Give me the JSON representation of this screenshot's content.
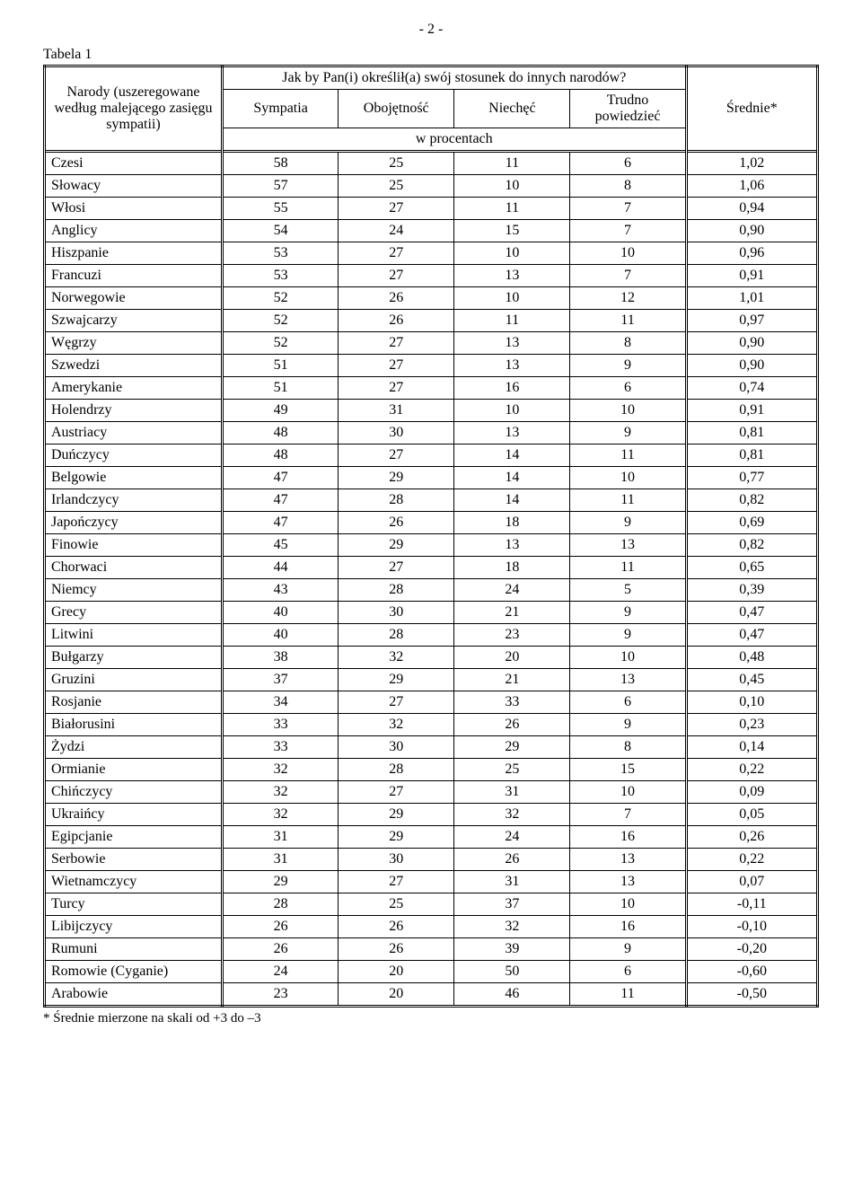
{
  "page_number": "- 2 -",
  "table_label": "Tabela 1",
  "header": {
    "nations": "Narody\n(uszeregowane według malejącego zasięgu sympatii)",
    "question": "Jak by Pan(i) określił(a) swój stosunek do innych narodów?",
    "sympatia": "Sympatia",
    "obojetnosc": "Obojętność",
    "niechec": "Niechęć",
    "trudno": "Trudno powiedzieć",
    "wprocentach": "w procentach",
    "srednie": "Średnie*"
  },
  "columns": [
    "Sympatia",
    "Obojętność",
    "Niechęć",
    "Trudno powiedzieć"
  ],
  "col_widths": {
    "nation": "23%",
    "q": "15%",
    "avg": "17%"
  },
  "rows": [
    {
      "n": "Czesi",
      "v": [
        58,
        25,
        11,
        6
      ],
      "a": "1,02"
    },
    {
      "n": "Słowacy",
      "v": [
        57,
        25,
        10,
        8
      ],
      "a": "1,06"
    },
    {
      "n": "Włosi",
      "v": [
        55,
        27,
        11,
        7
      ],
      "a": "0,94"
    },
    {
      "n": "Anglicy",
      "v": [
        54,
        24,
        15,
        7
      ],
      "a": "0,90"
    },
    {
      "n": "Hiszpanie",
      "v": [
        53,
        27,
        10,
        10
      ],
      "a": "0,96"
    },
    {
      "n": "Francuzi",
      "v": [
        53,
        27,
        13,
        7
      ],
      "a": "0,91"
    },
    {
      "n": "Norwegowie",
      "v": [
        52,
        26,
        10,
        12
      ],
      "a": "1,01"
    },
    {
      "n": "Szwajcarzy",
      "v": [
        52,
        26,
        11,
        11
      ],
      "a": "0,97"
    },
    {
      "n": "Węgrzy",
      "v": [
        52,
        27,
        13,
        8
      ],
      "a": "0,90"
    },
    {
      "n": "Szwedzi",
      "v": [
        51,
        27,
        13,
        9
      ],
      "a": "0,90"
    },
    {
      "n": "Amerykanie",
      "v": [
        51,
        27,
        16,
        6
      ],
      "a": "0,74"
    },
    {
      "n": "Holendrzy",
      "v": [
        49,
        31,
        10,
        10
      ],
      "a": "0,91"
    },
    {
      "n": "Austriacy",
      "v": [
        48,
        30,
        13,
        9
      ],
      "a": "0,81"
    },
    {
      "n": "Duńczycy",
      "v": [
        48,
        27,
        14,
        11
      ],
      "a": "0,81"
    },
    {
      "n": "Belgowie",
      "v": [
        47,
        29,
        14,
        10
      ],
      "a": "0,77"
    },
    {
      "n": "Irlandczycy",
      "v": [
        47,
        28,
        14,
        11
      ],
      "a": "0,82"
    },
    {
      "n": "Japończycy",
      "v": [
        47,
        26,
        18,
        9
      ],
      "a": "0,69"
    },
    {
      "n": "Finowie",
      "v": [
        45,
        29,
        13,
        13
      ],
      "a": "0,82"
    },
    {
      "n": "Chorwaci",
      "v": [
        44,
        27,
        18,
        11
      ],
      "a": "0,65"
    },
    {
      "n": "Niemcy",
      "v": [
        43,
        28,
        24,
        5
      ],
      "a": "0,39"
    },
    {
      "n": "Grecy",
      "v": [
        40,
        30,
        21,
        9
      ],
      "a": "0,47"
    },
    {
      "n": "Litwini",
      "v": [
        40,
        28,
        23,
        9
      ],
      "a": "0,47"
    },
    {
      "n": "Bułgarzy",
      "v": [
        38,
        32,
        20,
        10
      ],
      "a": "0,48"
    },
    {
      "n": "Gruzini",
      "v": [
        37,
        29,
        21,
        13
      ],
      "a": "0,45"
    },
    {
      "n": "Rosjanie",
      "v": [
        34,
        27,
        33,
        6
      ],
      "a": "0,10"
    },
    {
      "n": "Białorusini",
      "v": [
        33,
        32,
        26,
        9
      ],
      "a": "0,23"
    },
    {
      "n": "Żydzi",
      "v": [
        33,
        30,
        29,
        8
      ],
      "a": "0,14"
    },
    {
      "n": "Ormianie",
      "v": [
        32,
        28,
        25,
        15
      ],
      "a": "0,22"
    },
    {
      "n": "Chińczycy",
      "v": [
        32,
        27,
        31,
        10
      ],
      "a": "0,09"
    },
    {
      "n": "Ukraińcy",
      "v": [
        32,
        29,
        32,
        7
      ],
      "a": "0,05"
    },
    {
      "n": "Egipcjanie",
      "v": [
        31,
        29,
        24,
        16
      ],
      "a": "0,26"
    },
    {
      "n": "Serbowie",
      "v": [
        31,
        30,
        26,
        13
      ],
      "a": "0,22"
    },
    {
      "n": "Wietnamczycy",
      "v": [
        29,
        27,
        31,
        13
      ],
      "a": "0,07"
    },
    {
      "n": "Turcy",
      "v": [
        28,
        25,
        37,
        10
      ],
      "a": "-0,11"
    },
    {
      "n": "Libijczycy",
      "v": [
        26,
        26,
        32,
        16
      ],
      "a": "-0,10"
    },
    {
      "n": "Rumuni",
      "v": [
        26,
        26,
        39,
        9
      ],
      "a": "-0,20"
    },
    {
      "n": "Romowie (Cyganie)",
      "v": [
        24,
        20,
        50,
        6
      ],
      "a": "-0,60"
    },
    {
      "n": "Arabowie",
      "v": [
        23,
        20,
        46,
        11
      ],
      "a": "-0,50"
    }
  ],
  "footnote": "* Średnie mierzone na skali od +3 do –3",
  "style": {
    "font_family": "Times New Roman",
    "font_size_pt": 12,
    "text_color": "#000000",
    "background_color": "#ffffff",
    "border_color": "#000000",
    "outer_border": "double",
    "inner_row_border": "single"
  }
}
